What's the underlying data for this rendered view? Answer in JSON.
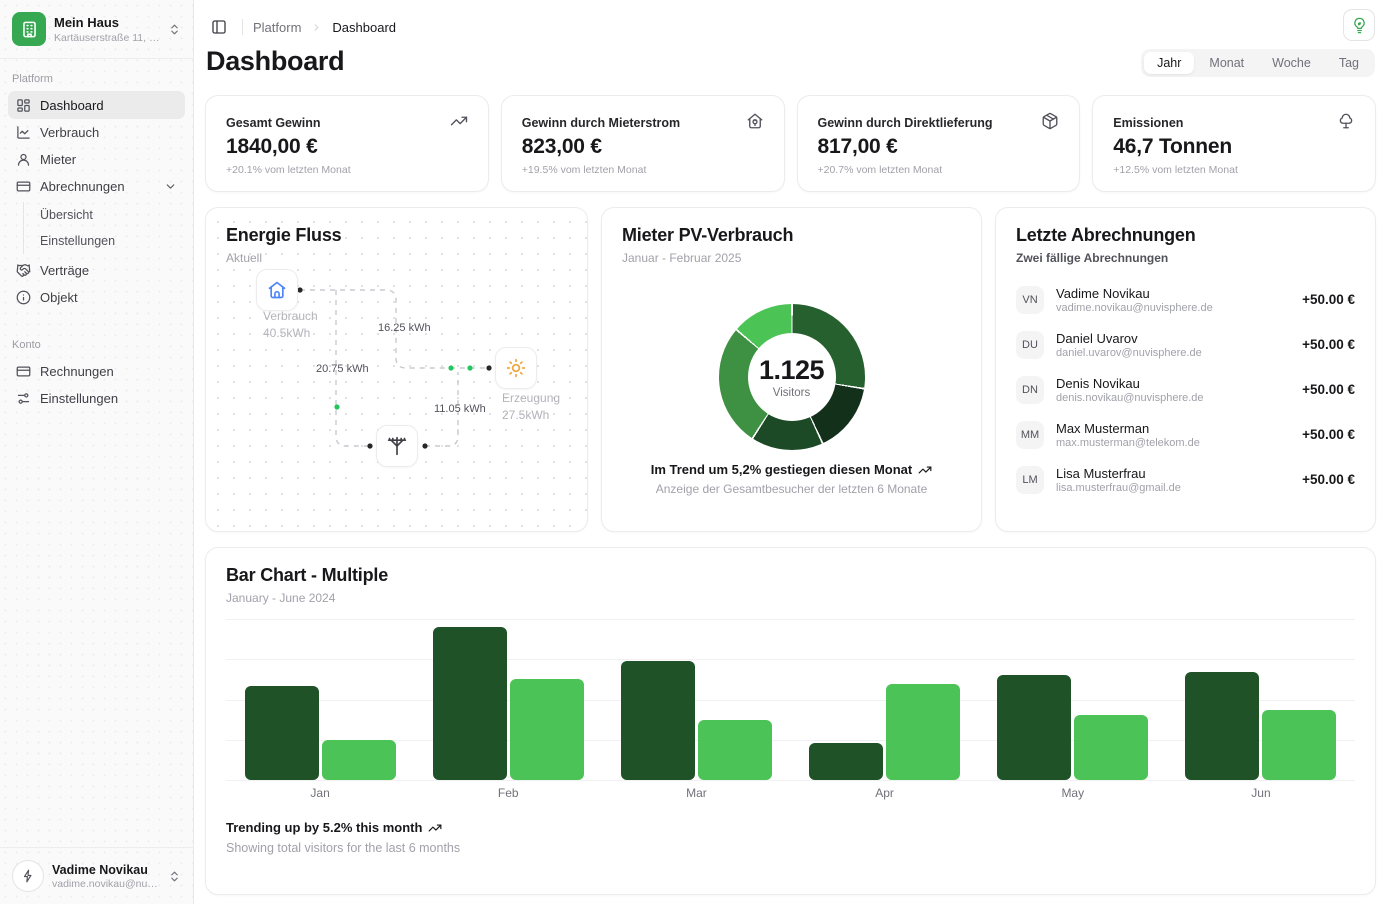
{
  "colors": {
    "brand_green": "#36a852",
    "chart_dark_green": "#1f5226",
    "chart_light_green": "#4bc356",
    "house_blue": "#4f86f7",
    "sun_orange": "#f0a33a"
  },
  "sidebar": {
    "workspace": {
      "name": "Mein Haus",
      "address": "Kartäuserstraße 11, 99084 E…",
      "icon": "building-icon"
    },
    "sections": [
      {
        "label": "Platform",
        "items": [
          {
            "label": "Dashboard",
            "icon": "dashboard-grid-icon",
            "active": true
          },
          {
            "label": "Verbrauch",
            "icon": "chart-line-icon"
          },
          {
            "label": "Mieter",
            "icon": "user-icon"
          },
          {
            "label": "Abrechnungen",
            "icon": "credit-card-icon",
            "expanded": true,
            "children": [
              "Übersicht",
              "Einstellungen"
            ]
          },
          {
            "label": "Verträge",
            "icon": "handshake-icon"
          },
          {
            "label": "Objekt",
            "icon": "info-icon"
          }
        ]
      },
      {
        "label": "Konto",
        "items": [
          {
            "label": "Rechnungen",
            "icon": "credit-card-icon"
          },
          {
            "label": "Einstellungen",
            "icon": "sliders-icon"
          }
        ]
      }
    ],
    "user": {
      "name": "Vadime Novikau",
      "email": "vadime.novikau@nuvispher…",
      "icon": "lightning-icon"
    }
  },
  "header": {
    "breadcrumb": [
      "Platform",
      "Dashboard"
    ],
    "page_title": "Dashboard",
    "range_tabs": {
      "options": [
        "Jahr",
        "Monat",
        "Woche",
        "Tag"
      ],
      "active": "Jahr"
    }
  },
  "stat_cards": [
    {
      "label": "Gesamt Gewinn",
      "value": "1840,00 €",
      "change": "+20.1% vom letzten Monat",
      "icon": "trending-up-icon"
    },
    {
      "label": "Gewinn durch Mieterstrom",
      "value": "823,00 €",
      "change": "+19.5% vom letzten Monat",
      "icon": "house-plug-icon"
    },
    {
      "label": "Gewinn durch Direktlieferung",
      "value": "817,00 €",
      "change": "+20.7% vom letzten Monat",
      "icon": "package-icon"
    },
    {
      "label": "Emissionen",
      "value": "46,7 Tonnen",
      "change": "+12.5% vom letzten Monat",
      "icon": "tree-icon"
    }
  ],
  "energy_flow": {
    "title": "Energie Fluss",
    "subtitle": "Aktuell",
    "nodes": [
      {
        "id": "consumption",
        "icon": "house-icon",
        "label": "Verbrauch",
        "value": "40.5kWh"
      },
      {
        "id": "production",
        "icon": "sun-icon",
        "label": "Erzeugung",
        "value": "27.5kWh"
      },
      {
        "id": "grid",
        "icon": "power-pole-icon"
      }
    ],
    "edges": [
      {
        "from": "consumption",
        "to": "production",
        "label": "16.25 kWh"
      },
      {
        "from": "consumption",
        "to": "grid",
        "label": "20.75 kWh"
      },
      {
        "from": "grid",
        "to": "production",
        "label": "11.05 kWh"
      }
    ]
  },
  "billings": {
    "title": "Letzte Abrechnungen",
    "subtitle": "Zwei fällige Abrechnungen",
    "rows": [
      {
        "initials": "VN",
        "name": "Vadime Novikau",
        "email": "vadime.novikau@nuvisphere.de",
        "amount": "+50.00 €"
      },
      {
        "initials": "DU",
        "name": "Daniel Uvarov",
        "email": "daniel.uvarov@nuvisphere.de",
        "amount": "+50.00 €"
      },
      {
        "initials": "DN",
        "name": "Denis Novikau",
        "email": "denis.novikau@nuvisphere.de",
        "amount": "+50.00 €"
      },
      {
        "initials": "MM",
        "name": "Max Musterman",
        "email": "max.musterman@telekom.de",
        "amount": "+50.00 €"
      },
      {
        "initials": "LM",
        "name": "Lisa Musterfrau",
        "email": "lisa.musterfrau@gmail.de",
        "amount": "+50.00 €"
      }
    ]
  },
  "chart_data": [
    {
      "type": "pie",
      "title": "Mieter PV-Verbrauch",
      "subtitle": "Januar - Februar 2025",
      "center_value": "1.125",
      "center_label": "Visitors",
      "total": 1125,
      "segments": [
        {
          "value": 310,
          "color": "#26602f"
        },
        {
          "value": 175,
          "color": "#13301b"
        },
        {
          "value": 180,
          "color": "#1d4a26"
        },
        {
          "value": 305,
          "color": "#3e9142"
        },
        {
          "value": 155,
          "color": "#4cc355"
        }
      ],
      "legend": "none",
      "footer_primary": "Im Trend um 5,2% gestiegen diesen Monat",
      "footer_secondary": "Anzeige der Gesamtbesucher der letzten 6 Monate"
    },
    {
      "type": "bar",
      "title": "Bar Chart - Multiple",
      "subtitle": "January - June 2024",
      "categories": [
        "Jan",
        "Feb",
        "Mar",
        "Apr",
        "May",
        "Jun"
      ],
      "series": [
        {
          "name": "series-1",
          "color": "#1f5226",
          "values": [
            186,
            305,
            237,
            73,
            209,
            214
          ]
        },
        {
          "name": "series-2",
          "color": "#4bc356",
          "values": [
            80,
            200,
            120,
            190,
            130,
            140
          ]
        }
      ],
      "ylim": [
        0,
        320
      ],
      "grid": "horizontal",
      "legend": "none",
      "footer_primary": "Trending up by 5.2% this month",
      "footer_secondary": "Showing total visitors for the last 6 months"
    }
  ]
}
